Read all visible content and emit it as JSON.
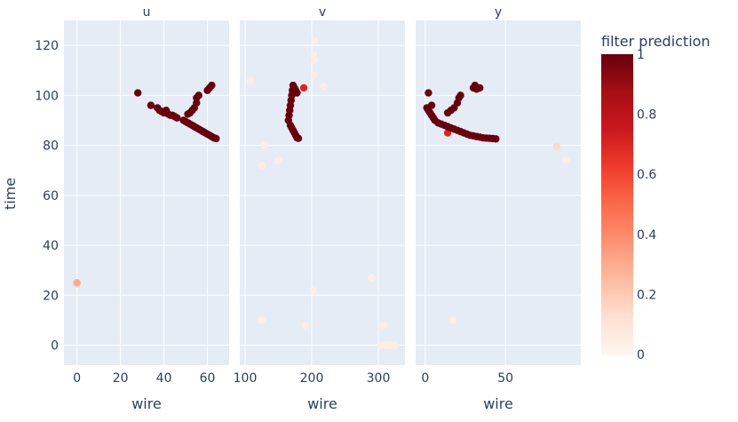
{
  "chart_data": {
    "type": "scatter",
    "ylabel": "time",
    "xlabel": "wire",
    "ylim": [
      -8,
      130
    ],
    "y_ticks": [
      0,
      20,
      40,
      60,
      80,
      100,
      120
    ],
    "grid": true,
    "colorscale": "Reds",
    "colorbar": {
      "title": "filter prediction",
      "range": [
        0,
        1
      ],
      "ticks": [
        "0",
        "0.2",
        "0.4",
        "0.6",
        "0.8",
        "1"
      ]
    },
    "panels": [
      {
        "title": "u",
        "xlim": [
          -6,
          70
        ],
        "x_ticks": [
          0,
          20,
          40,
          60
        ],
        "points": [
          [
            28,
            101,
            1
          ],
          [
            34,
            96,
            1
          ],
          [
            37,
            95,
            1
          ],
          [
            38,
            94,
            1
          ],
          [
            39,
            93.5,
            1
          ],
          [
            40,
            93,
            1
          ],
          [
            41,
            94,
            1
          ],
          [
            42,
            92.5,
            1
          ],
          [
            43,
            92,
            1
          ],
          [
            44,
            92,
            1
          ],
          [
            45,
            91.5,
            1
          ],
          [
            46,
            91,
            1
          ],
          [
            49,
            90,
            1
          ],
          [
            50,
            89.5,
            1
          ],
          [
            51,
            89,
            1
          ],
          [
            52,
            88.5,
            1
          ],
          [
            53,
            88,
            1
          ],
          [
            54,
            87.5,
            1
          ],
          [
            55,
            87,
            1
          ],
          [
            56,
            86.5,
            1
          ],
          [
            57,
            86,
            1
          ],
          [
            58,
            85.5,
            1
          ],
          [
            59,
            85,
            1
          ],
          [
            60,
            84.5,
            1
          ],
          [
            61,
            84,
            1
          ],
          [
            62,
            83.5,
            1
          ],
          [
            63,
            83,
            1
          ],
          [
            64,
            82.7,
            1
          ],
          [
            51,
            92.5,
            1
          ],
          [
            52,
            93,
            1
          ],
          [
            53,
            94,
            1
          ],
          [
            54,
            95,
            1
          ],
          [
            55,
            97,
            1
          ],
          [
            55,
            99,
            1
          ],
          [
            56,
            100,
            1
          ],
          [
            60,
            102,
            1
          ],
          [
            61,
            103,
            1
          ],
          [
            62,
            104,
            1
          ],
          [
            0,
            25,
            0.3
          ],
          [
            0,
            24.5,
            0.15
          ]
        ]
      },
      {
        "title": "v",
        "xlim": [
          92,
          340
        ],
        "x_ticks": [
          100,
          200,
          300
        ],
        "points": [
          [
            165,
            90,
            1
          ],
          [
            166,
            92,
            1
          ],
          [
            167,
            94,
            1
          ],
          [
            168,
            96,
            1
          ],
          [
            169,
            98,
            1
          ],
          [
            170,
            100,
            1
          ],
          [
            171,
            102,
            1
          ],
          [
            172,
            104,
            1
          ],
          [
            168,
            88,
            1
          ],
          [
            170,
            87,
            1
          ],
          [
            172,
            86,
            1
          ],
          [
            174,
            85,
            1
          ],
          [
            176,
            84,
            1
          ],
          [
            178,
            83,
            1
          ],
          [
            180,
            82.8,
            1
          ],
          [
            174,
            103,
            1
          ],
          [
            176,
            102,
            1
          ],
          [
            178,
            101,
            1
          ],
          [
            188,
            103,
            0.7
          ],
          [
            108,
            106,
            0.06
          ],
          [
            218,
            103.5,
            0.06
          ],
          [
            203,
            108,
            0.05
          ],
          [
            204,
            114,
            0.05
          ],
          [
            203,
            116,
            0.05
          ],
          [
            204,
            122,
            0.05
          ],
          [
            130,
            80,
            0.05
          ],
          [
            125,
            72,
            0.05
          ],
          [
            150,
            74,
            0.05
          ],
          [
            202,
            22,
            0.05
          ],
          [
            290,
            27,
            0.05
          ],
          [
            125,
            10,
            0.05
          ],
          [
            190,
            8,
            0.05
          ],
          [
            308,
            8,
            0.05
          ],
          [
            305,
            0,
            0.05
          ],
          [
            310,
            0,
            0.05
          ],
          [
            315,
            0,
            0.05
          ],
          [
            320,
            0,
            0.05
          ],
          [
            325,
            0,
            0.05
          ]
        ]
      },
      {
        "title": "y",
        "xlim": [
          -6,
          97
        ],
        "x_ticks": [
          0,
          50
        ],
        "points": [
          [
            1,
            95,
            1
          ],
          [
            2,
            94,
            1
          ],
          [
            3,
            93,
            1
          ],
          [
            4,
            92,
            1
          ],
          [
            5,
            91,
            1
          ],
          [
            6,
            90,
            1
          ],
          [
            8,
            89,
            1
          ],
          [
            10,
            88.5,
            1
          ],
          [
            12,
            88,
            1
          ],
          [
            14,
            87.5,
            1
          ],
          [
            16,
            87,
            1
          ],
          [
            18,
            86.5,
            1
          ],
          [
            20,
            86,
            1
          ],
          [
            22,
            85.5,
            1
          ],
          [
            24,
            85,
            1
          ],
          [
            26,
            84.5,
            1
          ],
          [
            28,
            84,
            1
          ],
          [
            30,
            83.8,
            1
          ],
          [
            32,
            83.5,
            1
          ],
          [
            34,
            83.3,
            1
          ],
          [
            36,
            83,
            1
          ],
          [
            38,
            82.9,
            1
          ],
          [
            40,
            82.8,
            1
          ],
          [
            42,
            82.7,
            1
          ],
          [
            44,
            82.6,
            1
          ],
          [
            2,
            101,
            1
          ],
          [
            4,
            96,
            1
          ],
          [
            14,
            93,
            1
          ],
          [
            16,
            94,
            1
          ],
          [
            18,
            95,
            1
          ],
          [
            20,
            97,
            1
          ],
          [
            21,
            99,
            1
          ],
          [
            22,
            100,
            1
          ],
          [
            30,
            103,
            1
          ],
          [
            31,
            104,
            1
          ],
          [
            32,
            102.5,
            1
          ],
          [
            34,
            103,
            1
          ],
          [
            14,
            85,
            0.7
          ],
          [
            17,
            10,
            0.05
          ],
          [
            82,
            79.5,
            0.15
          ],
          [
            88,
            74,
            0.05
          ]
        ]
      }
    ]
  }
}
